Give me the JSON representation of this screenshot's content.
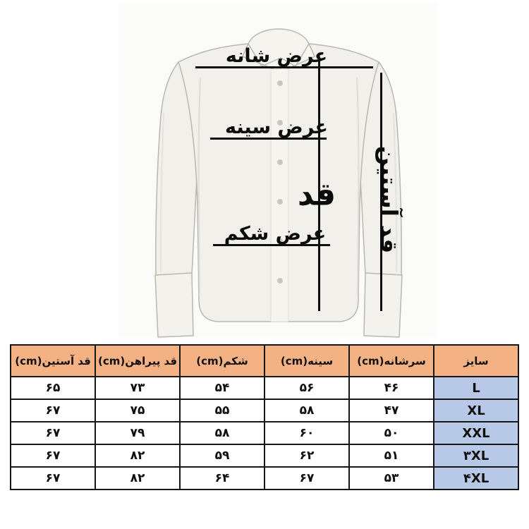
{
  "diagram": {
    "labels": {
      "shoulder_width": "عرض شانه",
      "chest_width": "عرض سینه",
      "belly_width": "عرض شکم",
      "length": "قد",
      "sleeve_length": "قد آستین"
    }
  },
  "chart_data": {
    "type": "table",
    "columns": [
      "سایز",
      "سرشانه(cm)",
      "سینه(cm)",
      "شکم(cm)",
      "قد پیراهن(cm)",
      "قد آستین(cm)"
    ],
    "rows": [
      [
        "L",
        "۴۶",
        "۵۶",
        "۵۴",
        "۷۳",
        "۶۵"
      ],
      [
        "XL",
        "۴۷",
        "۵۸",
        "۵۵",
        "۷۵",
        "۶۷"
      ],
      [
        "XXL",
        "۵۰",
        "۶۰",
        "۵۸",
        "۷۹",
        "۶۷"
      ],
      [
        "۳XL",
        "۵۱",
        "۶۲",
        "۵۹",
        "۸۲",
        "۶۷"
      ],
      [
        "۴XL",
        "۵۳",
        "۶۷",
        "۶۴",
        "۸۲",
        "۶۷"
      ]
    ]
  },
  "colors": {
    "header_bg": "#f4b183",
    "size_col_bg": "#b7c9e6",
    "table_border": "#161616",
    "measure_line": "#0d0d0d"
  }
}
